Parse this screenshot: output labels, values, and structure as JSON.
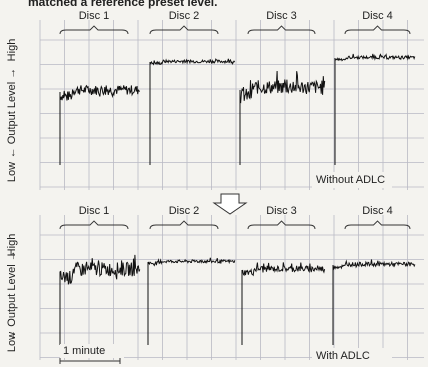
{
  "header": {
    "caption": "matched a reference preset level."
  },
  "panels": [
    {
      "discs": [
        "Disc 1",
        "Disc 2",
        "Disc 3",
        "Disc 4"
      ],
      "y_axis": {
        "high": "High",
        "label": "← Output Level →",
        "low": "Low"
      },
      "note": "Without ADLC"
    },
    {
      "discs": [
        "Disc 1",
        "Disc 2",
        "Disc 3",
        "Disc 4"
      ],
      "y_axis": {
        "high": "High",
        "label": "← Output Level →",
        "low": "Low"
      },
      "note": "With ADLC",
      "scale_label": "1 minute"
    }
  ]
}
